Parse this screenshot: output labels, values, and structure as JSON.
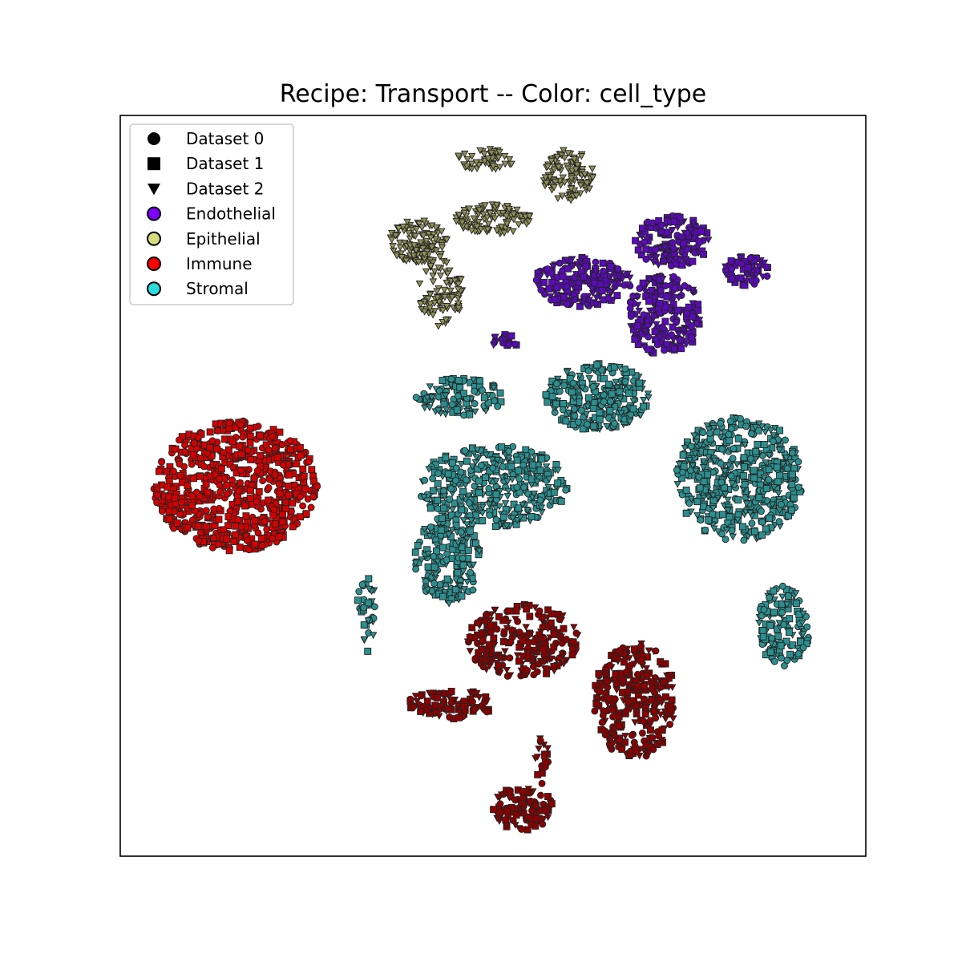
{
  "chart_data": {
    "type": "scatter",
    "title": "Recipe: Transport -- Color: cell_type",
    "xlabel": "",
    "ylabel": "",
    "axis_ticks": "none",
    "grid": false,
    "legend_placement": "top-left",
    "xlim": [
      0,
      100
    ],
    "ylim": [
      0,
      100
    ],
    "marker_legend": [
      {
        "label": "Dataset 0",
        "marker": "circle"
      },
      {
        "label": "Dataset 1",
        "marker": "square"
      },
      {
        "label": "Dataset 2",
        "marker": "triangle-down"
      }
    ],
    "color_legend": [
      {
        "label": "Endothelial",
        "color": "#7f00ff"
      },
      {
        "label": "Epithelial",
        "color": "#d4dc7f"
      },
      {
        "label": "Immune",
        "color": "#ff0000"
      },
      {
        "label": "Stromal",
        "color": "#2adddd"
      }
    ],
    "clusters": [
      {
        "cell_type": "Immune",
        "color": "#d40000",
        "cx": 15.5,
        "cy": 50,
        "rx": 11,
        "ry": 8.8,
        "n": 700,
        "datasets": [
          0,
          1
        ]
      },
      {
        "cell_type": "Epithelial",
        "color": "#8f9158",
        "cx": 40,
        "cy": 83,
        "rx": 4,
        "ry": 3,
        "n": 120,
        "datasets": [
          2
        ]
      },
      {
        "cell_type": "Epithelial",
        "color": "#8f9158",
        "cx": 50,
        "cy": 86,
        "rx": 5,
        "ry": 2,
        "n": 110,
        "datasets": [
          2
        ]
      },
      {
        "cell_type": "Epithelial",
        "color": "#8f9158",
        "cx": 43,
        "cy": 76,
        "rx": 3,
        "ry": 4.5,
        "n": 90,
        "datasets": [
          2
        ]
      },
      {
        "cell_type": "Epithelial",
        "color": "#8f9158",
        "cx": 49,
        "cy": 94,
        "rx": 4,
        "ry": 1.5,
        "n": 50,
        "datasets": [
          2
        ]
      },
      {
        "cell_type": "Epithelial",
        "color": "#8f9158",
        "cx": 60,
        "cy": 92,
        "rx": 3.5,
        "ry": 3.5,
        "n": 110,
        "datasets": [
          2
        ]
      },
      {
        "cell_type": "Endothelial",
        "color": "#5a0ab8",
        "cx": 62,
        "cy": 77.5,
        "rx": 6.5,
        "ry": 3.3,
        "n": 200,
        "datasets": [
          0,
          1,
          2
        ]
      },
      {
        "cell_type": "Endothelial",
        "color": "#5a0ab8",
        "cx": 73,
        "cy": 73,
        "rx": 5,
        "ry": 5.5,
        "n": 220,
        "datasets": [
          0,
          1,
          2
        ]
      },
      {
        "cell_type": "Endothelial",
        "color": "#5a0ab8",
        "cx": 74,
        "cy": 83,
        "rx": 5,
        "ry": 3.5,
        "n": 150,
        "datasets": [
          0,
          1,
          2
        ]
      },
      {
        "cell_type": "Endothelial",
        "color": "#5a0ab8",
        "cx": 84,
        "cy": 79,
        "rx": 3,
        "ry": 2,
        "n": 60,
        "datasets": [
          0,
          1,
          2
        ]
      },
      {
        "cell_type": "Endothelial",
        "color": "#5a0ab8",
        "cx": 51.5,
        "cy": 69.5,
        "rx": 2,
        "ry": 1,
        "n": 20,
        "datasets": [
          0,
          1,
          2
        ]
      },
      {
        "cell_type": "Stromal",
        "color": "#2b8f8f",
        "cx": 45.5,
        "cy": 62,
        "rx": 6,
        "ry": 2.5,
        "n": 110,
        "datasets": [
          0,
          1,
          2
        ]
      },
      {
        "cell_type": "Stromal",
        "color": "#2b8f8f",
        "cx": 50,
        "cy": 50,
        "rx": 10,
        "ry": 5.5,
        "n": 380,
        "datasets": [
          0,
          1,
          2
        ]
      },
      {
        "cell_type": "Stromal",
        "color": "#2b8f8f",
        "cx": 44,
        "cy": 40,
        "rx": 4.5,
        "ry": 6,
        "n": 180,
        "datasets": [
          0,
          1,
          2
        ]
      },
      {
        "cell_type": "Stromal",
        "color": "#2b8f8f",
        "cx": 64,
        "cy": 62,
        "rx": 7,
        "ry": 4.5,
        "n": 260,
        "datasets": [
          0,
          1,
          2
        ]
      },
      {
        "cell_type": "Stromal",
        "color": "#2b8f8f",
        "cx": 83,
        "cy": 51,
        "rx": 8.5,
        "ry": 8.5,
        "n": 500,
        "datasets": [
          0,
          1,
          2
        ]
      },
      {
        "cell_type": "Stromal",
        "color": "#2b8f8f",
        "cx": 89,
        "cy": 31,
        "rx": 3.5,
        "ry": 5.5,
        "n": 130,
        "datasets": [
          0,
          1,
          2
        ]
      },
      {
        "cell_type": "Stromal",
        "color": "#2b8f8f",
        "cx": 33,
        "cy": 33,
        "rx": 1.3,
        "ry": 5.5,
        "n": 35,
        "datasets": [
          0,
          1,
          2
        ]
      },
      {
        "cell_type": "Immune",
        "color": "#8b0000",
        "cx": 54,
        "cy": 29,
        "rx": 7.5,
        "ry": 5,
        "n": 250,
        "datasets": [
          0,
          1,
          2
        ]
      },
      {
        "cell_type": "Immune",
        "color": "#8b0000",
        "cx": 69,
        "cy": 21,
        "rx": 5.5,
        "ry": 8,
        "n": 300,
        "datasets": [
          0,
          1,
          2
        ]
      },
      {
        "cell_type": "Immune",
        "color": "#8b0000",
        "cx": 44.5,
        "cy": 20.5,
        "rx": 6,
        "ry": 2,
        "n": 100,
        "datasets": [
          0,
          1,
          2
        ]
      },
      {
        "cell_type": "Immune",
        "color": "#8b0000",
        "cx": 54,
        "cy": 6.5,
        "rx": 4,
        "ry": 3,
        "n": 100,
        "datasets": [
          0,
          1,
          2
        ]
      },
      {
        "cell_type": "Immune",
        "color": "#8b0000",
        "cx": 56.5,
        "cy": 13,
        "rx": 1,
        "ry": 3.5,
        "n": 20,
        "datasets": [
          0,
          1,
          2
        ]
      }
    ]
  }
}
